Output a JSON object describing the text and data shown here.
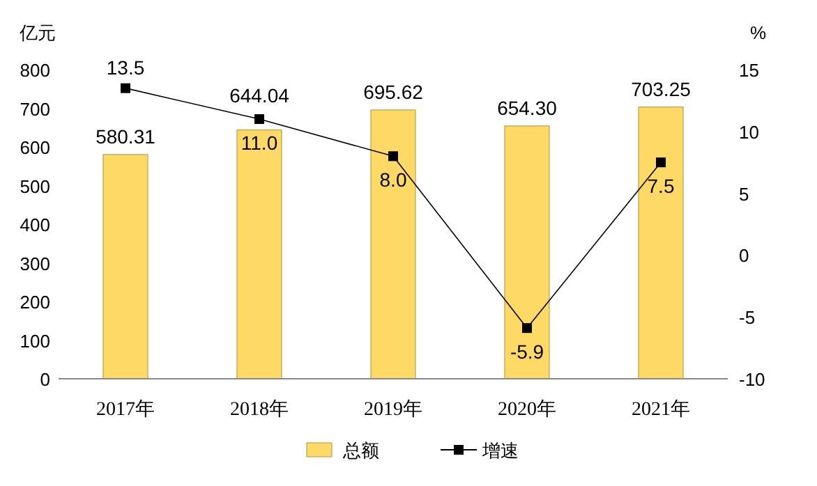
{
  "chart_data": {
    "type": "bar",
    "categories": [
      "2017年",
      "2018年",
      "2019年",
      "2020年",
      "2021年"
    ],
    "ylabel": "亿元",
    "y2label": "%",
    "ylim": [
      0,
      800
    ],
    "yticks": [
      0,
      100,
      200,
      300,
      400,
      500,
      600,
      700,
      800
    ],
    "y2lim": [
      -10,
      15
    ],
    "y2ticks": [
      -10,
      -5,
      0,
      5,
      10,
      15
    ],
    "legend": "bottom",
    "marker": "square",
    "series": [
      {
        "name": "总额",
        "color": "#ffd966",
        "values": [
          580.31,
          644.04,
          695.62,
          654.3,
          703.25
        ],
        "value_labels": [
          "580.31",
          "644.04",
          "695.62",
          "654.30",
          "703.25"
        ]
      },
      {
        "name": "增速",
        "type": "line",
        "axis": "y2",
        "color": "#000000",
        "values": [
          13.5,
          11.0,
          8.0,
          -5.9,
          7.5
        ],
        "value_labels": [
          "13.5",
          "11.0",
          "8.0",
          "-5.9",
          "7.5"
        ]
      }
    ]
  }
}
